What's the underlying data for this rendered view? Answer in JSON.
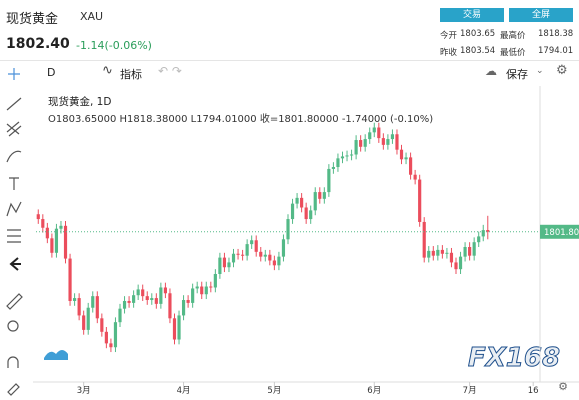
{
  "header": {
    "title": "现货黄金",
    "symbol": "XAU",
    "price": "1802.40",
    "change": "-1.14(-0.06%)",
    "buttons": [
      "交易",
      "全屏"
    ],
    "stats": [
      {
        "label": "今开",
        "value": "1803.65"
      },
      {
        "label": "最高价",
        "value": "1818.38"
      },
      {
        "label": "昨收",
        "value": "1803.54"
      },
      {
        "label": "最低价",
        "value": "1794.01"
      }
    ]
  },
  "toolbar": {
    "interval": "D",
    "indicators": "指标",
    "save": "保存"
  },
  "legend": {
    "name": "现货黄金, 1D",
    "ohlc": "O1803.65000  H1818.38000  L1794.01000  收=1801.80000  -1.74000 (-0.10%)"
  },
  "watermark": "FX168",
  "chart_data": {
    "type": "candlestick",
    "up_color": "#53b987",
    "down_color": "#eb4d5c",
    "xlim": [
      -0.5,
      110.5
    ],
    "ylim": [
      1648,
      1951
    ],
    "xticks": [
      {
        "value": 10,
        "label": "3月"
      },
      {
        "value": 32,
        "label": "4月"
      },
      {
        "value": 52,
        "label": "5月"
      },
      {
        "value": 74,
        "label": "6月"
      },
      {
        "value": 95,
        "label": "7月"
      },
      {
        "value": 109,
        "label": "16"
      }
    ],
    "price_line": {
      "value": 1801.8,
      "label": "1801.80"
    },
    "open": [
      1820,
      1815,
      1806,
      1795,
      1780,
      1805,
      1808,
      1774,
      1730,
      1733,
      1715,
      1700,
      1723,
      1735,
      1712,
      1698,
      1686,
      1682,
      1708,
      1722,
      1730,
      1728,
      1736,
      1742,
      1735,
      1731,
      1733,
      1727,
      1744,
      1738,
      1712,
      1690,
      1715,
      1731,
      1728,
      1743,
      1745,
      1737,
      1745,
      1744,
      1758,
      1775,
      1765,
      1770,
      1779,
      1778,
      1777,
      1789,
      1793,
      1781,
      1776,
      1778,
      1772,
      1767,
      1776,
      1794,
      1815,
      1831,
      1837,
      1827,
      1815,
      1824,
      1843,
      1836,
      1843,
      1867,
      1869,
      1878,
      1880,
      1881,
      1882,
      1897,
      1890,
      1898,
      1905,
      1910,
      1899,
      1892,
      1898,
      1903,
      1887,
      1877,
      1879,
      1861,
      1856,
      1812,
      1775,
      1782,
      1777,
      1783,
      1779,
      1780,
      1770,
      1763,
      1776,
      1786,
      1777,
      1791,
      1797,
      1803.65
    ],
    "high": [
      1825,
      1820,
      1811,
      1800,
      1810,
      1813,
      1813,
      1779,
      1738,
      1738,
      1720,
      1728,
      1740,
      1740,
      1717,
      1703,
      1691,
      1713,
      1727,
      1735,
      1735,
      1741,
      1747,
      1747,
      1740,
      1738,
      1738,
      1749,
      1749,
      1743,
      1717,
      1720,
      1736,
      1736,
      1748,
      1750,
      1750,
      1750,
      1750,
      1763,
      1780,
      1780,
      1775,
      1784,
      1784,
      1783,
      1794,
      1798,
      1798,
      1786,
      1783,
      1783,
      1777,
      1781,
      1799,
      1820,
      1836,
      1842,
      1842,
      1832,
      1829,
      1848,
      1848,
      1848,
      1872,
      1874,
      1883,
      1885,
      1886,
      1887,
      1902,
      1902,
      1903,
      1910,
      1915,
      1915,
      1904,
      1903,
      1908,
      1908,
      1892,
      1884,
      1884,
      1866,
      1861,
      1817,
      1787,
      1787,
      1788,
      1788,
      1785,
      1785,
      1775,
      1781,
      1791,
      1791,
      1796,
      1802,
      1809,
      1818.38
    ],
    "low": [
      1810,
      1801,
      1790,
      1775,
      1775,
      1800,
      1769,
      1725,
      1725,
      1710,
      1695,
      1695,
      1718,
      1707,
      1693,
      1681,
      1677,
      1677,
      1703,
      1717,
      1723,
      1723,
      1731,
      1730,
      1726,
      1726,
      1722,
      1722,
      1733,
      1707,
      1685,
      1685,
      1710,
      1723,
      1723,
      1738,
      1732,
      1732,
      1739,
      1739,
      1753,
      1760,
      1760,
      1765,
      1773,
      1772,
      1772,
      1784,
      1776,
      1771,
      1771,
      1767,
      1762,
      1762,
      1771,
      1789,
      1810,
      1826,
      1822,
      1810,
      1810,
      1819,
      1831,
      1831,
      1838,
      1862,
      1864,
      1873,
      1875,
      1876,
      1877,
      1885,
      1885,
      1893,
      1900,
      1894,
      1887,
      1887,
      1893,
      1882,
      1872,
      1872,
      1856,
      1851,
      1807,
      1770,
      1770,
      1772,
      1772,
      1774,
      1774,
      1765,
      1758,
      1758,
      1771,
      1772,
      1772,
      1786,
      1792,
      1794.01
    ],
    "close": [
      1815,
      1806,
      1795,
      1780,
      1805,
      1808,
      1774,
      1730,
      1733,
      1715,
      1700,
      1723,
      1735,
      1712,
      1698,
      1686,
      1682,
      1708,
      1722,
      1730,
      1728,
      1736,
      1742,
      1735,
      1731,
      1733,
      1727,
      1744,
      1738,
      1712,
      1690,
      1715,
      1731,
      1728,
      1743,
      1745,
      1737,
      1745,
      1744,
      1758,
      1775,
      1765,
      1770,
      1779,
      1778,
      1777,
      1789,
      1793,
      1781,
      1776,
      1778,
      1772,
      1767,
      1776,
      1794,
      1815,
      1831,
      1837,
      1827,
      1815,
      1824,
      1843,
      1836,
      1843,
      1867,
      1869,
      1878,
      1880,
      1881,
      1882,
      1897,
      1890,
      1898,
      1905,
      1910,
      1899,
      1892,
      1898,
      1903,
      1887,
      1877,
      1879,
      1861,
      1856,
      1812,
      1775,
      1782,
      1777,
      1783,
      1779,
      1780,
      1770,
      1763,
      1776,
      1786,
      1777,
      1791,
      1797,
      1803.54,
      1801.8
    ]
  }
}
